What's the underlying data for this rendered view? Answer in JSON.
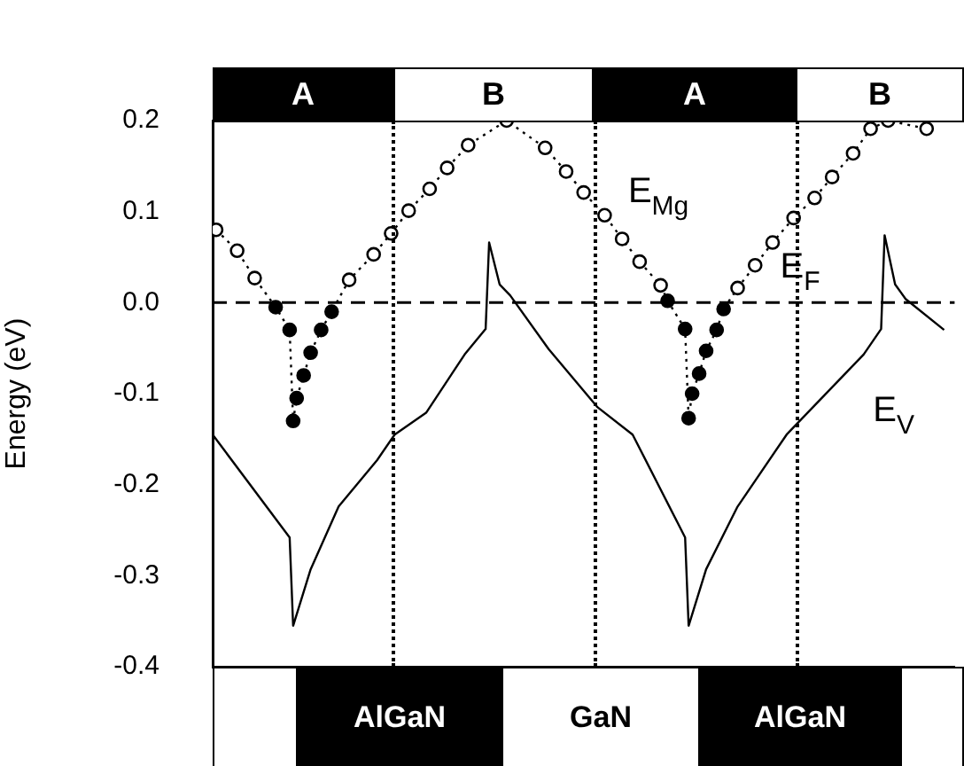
{
  "chart_data": {
    "type": "line",
    "ylabel": "Energy (eV)",
    "ylim": [
      -0.4,
      0.2
    ],
    "yticks": [
      0.2,
      0.1,
      {
        "value": 0,
        "label": "0.0"
      },
      -0.1,
      -0.2,
      -0.3,
      -0.4
    ],
    "tick_labels": "y",
    "grid": false,
    "marker": "circle",
    "categories": [
      null,
      null,
      null,
      null,
      null,
      null,
      null,
      null,
      null,
      null,
      null,
      null,
      null,
      null,
      null,
      null,
      null,
      null,
      null,
      null,
      null,
      null,
      null,
      null,
      null,
      null,
      null,
      null,
      null,
      null,
      null,
      null,
      null,
      null,
      null,
      null,
      null,
      null,
      null,
      null,
      null,
      null,
      null,
      null,
      null,
      null,
      null,
      null,
      null,
      null,
      null,
      null,
      null,
      null,
      null,
      null,
      null,
      null,
      null,
      null,
      null,
      null,
      null,
      null,
      null,
      null,
      null,
      null,
      null,
      null,
      null,
      null,
      null,
      null,
      null,
      null,
      null,
      null,
      null,
      null,
      null,
      null,
      null,
      null,
      null,
      null,
      null,
      null,
      null,
      null,
      null,
      null,
      null,
      null,
      null,
      null,
      null,
      null,
      null,
      null,
      null,
      null,
      null,
      null,
      null,
      null,
      null,
      null,
      null,
      null,
      null,
      null,
      null,
      null,
      null,
      null,
      null,
      null,
      null,
      null,
      null,
      null,
      null,
      null,
      null,
      null,
      null,
      null,
      null,
      null,
      null,
      null,
      null,
      null,
      null,
      null,
      null,
      null,
      null,
      null,
      null,
      null,
      null,
      null,
      null,
      null,
      null,
      null,
      null,
      null,
      null,
      null,
      null,
      null,
      null,
      null,
      null,
      null,
      null,
      null,
      null,
      null,
      null,
      null,
      null,
      null,
      null,
      null,
      null,
      null,
      null,
      null,
      null,
      null,
      null,
      null,
      null,
      null,
      null,
      null,
      null,
      null,
      null,
      null,
      null,
      null,
      null,
      null,
      null,
      null,
      null,
      null,
      null,
      null,
      null,
      null,
      null,
      null,
      null,
      null,
      null,
      null,
      null,
      null,
      null,
      null,
      null,
      null,
      null,
      null,
      null,
      null,
      null
    ],
    "series": [
      {
        "name": "E$_{Mg}$",
        "line_style": "dotted",
        "color": "#000000",
        "values": [
          null,
          0.08,
          null,
          null,
          null,
          null,
          null,
          0.057,
          null,
          null,
          null,
          null,
          0.027,
          null,
          null,
          null,
          null,
          null,
          -0.005,
          null,
          null,
          null,
          -0.03,
          -0.13,
          -0.105,
          null,
          -0.08,
          null,
          -0.055,
          null,
          null,
          -0.03,
          null,
          null,
          -0.01,
          null,
          null,
          null,
          null,
          0.025,
          null,
          null,
          null,
          null,
          null,
          null,
          0.053,
          null,
          null,
          null,
          null,
          0.076,
          null,
          null,
          null,
          null,
          0.101,
          null,
          null,
          null,
          null,
          null,
          0.125,
          null,
          null,
          null,
          null,
          0.148,
          null,
          null,
          null,
          null,
          null,
          0.173,
          null,
          null,
          null,
          null,
          null,
          null,
          null,
          null,
          null,
          null,
          0.2,
          null,
          null,
          null,
          null,
          null,
          null,
          null,
          null,
          null,
          null,
          0.17,
          null,
          null,
          null,
          null,
          null,
          0.144,
          null,
          null,
          null,
          null,
          0.121,
          null,
          null,
          null,
          null,
          null,
          0.096,
          null,
          null,
          null,
          null,
          0.07,
          null,
          null,
          null,
          null,
          0.045,
          null,
          null,
          null,
          null,
          null,
          0.019,
          null,
          0.002,
          null,
          null,
          null,
          null,
          -0.029,
          -0.127,
          -0.1,
          null,
          -0.078,
          null,
          -0.053,
          null,
          null,
          -0.03,
          null,
          -0.007,
          null,
          null,
          null,
          0.016,
          null,
          null,
          null,
          null,
          0.041,
          null,
          null,
          null,
          null,
          0.066,
          null,
          null,
          null,
          null,
          null,
          0.093,
          null,
          null,
          null,
          null,
          null,
          0.115,
          null,
          null,
          null,
          null,
          0.138,
          null,
          null,
          null,
          null,
          null,
          0.164,
          null,
          null,
          null,
          null,
          0.191,
          null,
          null,
          null,
          null,
          0.2,
          null,
          null,
          null,
          null,
          null,
          null,
          null,
          null,
          null,
          null,
          0.191,
          null,
          null,
          null,
          null,
          null,
          null,
          null,
          null
        ],
        "colors": [
          null,
          "#ffffff",
          null,
          null,
          null,
          null,
          null,
          "#ffffff",
          null,
          null,
          null,
          null,
          "#ffffff",
          null,
          null,
          null,
          null,
          null,
          "#000000",
          null,
          null,
          null,
          "#000000",
          "#000000",
          "#000000",
          null,
          "#000000",
          null,
          "#000000",
          null,
          null,
          "#000000",
          null,
          null,
          "#000000",
          null,
          null,
          null,
          null,
          "#ffffff",
          null,
          null,
          null,
          null,
          null,
          null,
          "#ffffff",
          null,
          null,
          null,
          null,
          "#ffffff",
          null,
          null,
          null,
          null,
          "#ffffff",
          null,
          null,
          null,
          null,
          null,
          "#ffffff",
          null,
          null,
          null,
          null,
          "#ffffff",
          null,
          null,
          null,
          null,
          null,
          "#ffffff",
          null,
          null,
          null,
          null,
          null,
          null,
          null,
          null,
          null,
          null,
          "#ffffff",
          null,
          null,
          null,
          null,
          null,
          null,
          null,
          null,
          null,
          null,
          "#ffffff",
          null,
          null,
          null,
          null,
          null,
          "#ffffff",
          null,
          null,
          null,
          null,
          "#ffffff",
          null,
          null,
          null,
          null,
          null,
          "#ffffff",
          null,
          null,
          null,
          null,
          "#ffffff",
          null,
          null,
          null,
          null,
          "#ffffff",
          null,
          null,
          null,
          null,
          null,
          "#ffffff",
          null,
          "#000000",
          null,
          null,
          null,
          null,
          "#000000",
          "#000000",
          "#000000",
          null,
          "#000000",
          null,
          "#000000",
          null,
          null,
          "#000000",
          null,
          "#000000",
          null,
          null,
          null,
          "#ffffff",
          null,
          null,
          null,
          null,
          "#ffffff",
          null,
          null,
          null,
          null,
          "#ffffff",
          null,
          null,
          null,
          null,
          null,
          "#ffffff",
          null,
          null,
          null,
          null,
          null,
          "#ffffff",
          null,
          null,
          null,
          null,
          "#ffffff",
          null,
          null,
          null,
          null,
          null,
          "#ffffff",
          null,
          null,
          null,
          null,
          "#ffffff",
          null,
          null,
          null,
          null,
          "#ffffff",
          null,
          null,
          null,
          null,
          null,
          null,
          null,
          null,
          null,
          null,
          "#ffffff",
          null,
          null,
          null,
          null,
          null,
          null,
          null,
          null
        ]
      },
      {
        "name": "E$_{V}$",
        "marker": "none",
        "line_style": "solid",
        "color": "#000000",
        "values": [
          -0.145,
          null,
          null,
          null,
          null,
          null,
          null,
          null,
          null,
          null,
          null,
          null,
          null,
          null,
          null,
          null,
          null,
          null,
          null,
          null,
          null,
          null,
          -0.258,
          -0.355,
          null,
          null,
          null,
          null,
          -0.293,
          null,
          null,
          null,
          null,
          null,
          null,
          null,
          -0.224,
          null,
          null,
          null,
          null,
          null,
          null,
          null,
          null,
          null,
          null,
          -0.173,
          null,
          null,
          null,
          null,
          -0.145,
          null,
          null,
          null,
          null,
          null,
          null,
          null,
          null,
          -0.121,
          null,
          null,
          null,
          null,
          null,
          null,
          null,
          null,
          null,
          null,
          -0.057,
          null,
          null,
          null,
          null,
          null,
          -0.029,
          0.066,
          null,
          null,
          0.02,
          null,
          null,
          0.008,
          null,
          null,
          null,
          null,
          null,
          null,
          null,
          null,
          null,
          null,
          -0.051,
          null,
          null,
          null,
          null,
          null,
          null,
          null,
          null,
          null,
          null,
          null,
          null,
          null,
          -0.115,
          null,
          null,
          null,
          null,
          null,
          null,
          null,
          null,
          null,
          -0.145,
          null,
          null,
          null,
          null,
          null,
          null,
          null,
          null,
          null,
          null,
          null,
          null,
          null,
          null,
          -0.258,
          -0.355,
          null,
          null,
          null,
          null,
          -0.293,
          null,
          null,
          null,
          null,
          null,
          null,
          null,
          null,
          -0.224,
          null,
          null,
          null,
          null,
          null,
          null,
          null,
          null,
          null,
          null,
          null,
          null,
          null,
          -0.145,
          null,
          null,
          null,
          null,
          null,
          null,
          null,
          null,
          null,
          null,
          null,
          null,
          null,
          null,
          null,
          null,
          null,
          null,
          null,
          null,
          null,
          -0.057,
          null,
          null,
          null,
          null,
          -0.029,
          0.074,
          null,
          null,
          0.02,
          null,
          null,
          0.004,
          null,
          null,
          null,
          null,
          null,
          null,
          null,
          null,
          null,
          null,
          -0.03,
          null,
          null,
          null
        ]
      }
    ],
    "ref_lines": [
      {
        "axis": "y",
        "value": 0,
        "label": "E$_{F}$",
        "line_style": "dashed",
        "color": "#000000"
      }
    ],
    "annotations": [
      "A",
      "B",
      "A",
      "B",
      "AlGaN",
      "GaN",
      "AlGaN"
    ]
  }
}
